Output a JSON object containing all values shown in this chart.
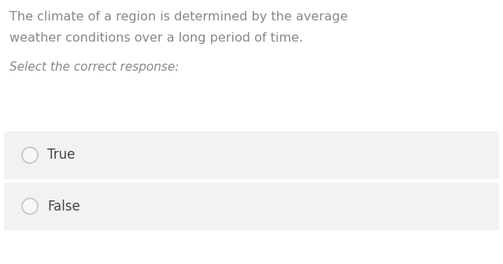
{
  "background_color": "#ffffff",
  "question_text_line1": "The climate of a region is determined by the average",
  "question_text_line2": "weather conditions over a long period of time.",
  "prompt_text": "Select the correct response:",
  "options": [
    "True",
    "False"
  ],
  "option_box_color": "#f2f2f2",
  "option_text_color": "#444444",
  "question_text_color": "#888888",
  "prompt_text_color": "#888888",
  "circle_edge_color": "#cccccc",
  "circle_face_color": "#f8f8f8",
  "question_fontsize": 11.5,
  "prompt_fontsize": 11,
  "option_fontsize": 12,
  "fig_width": 6.39,
  "fig_height": 3.36,
  "dpi": 100
}
